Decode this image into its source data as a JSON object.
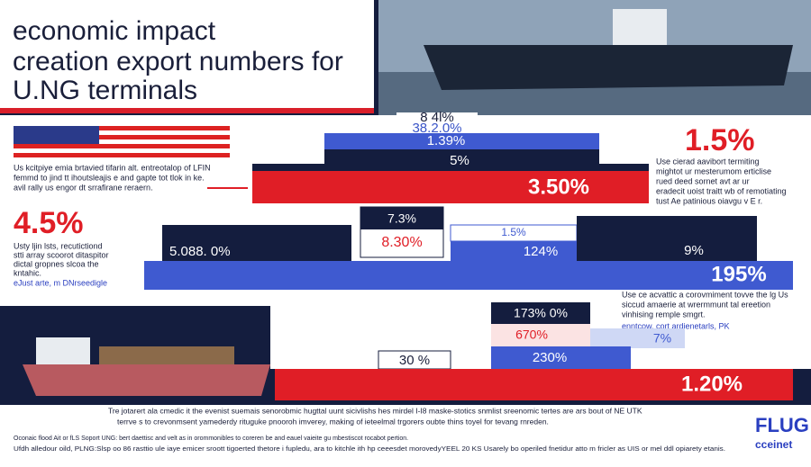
{
  "header": {
    "title_lines": [
      "economic impact",
      "creation export numbers for",
      "U.NG terminals"
    ]
  },
  "top_labels": [
    "8 4l%",
    "38.2.0%",
    "1.39%"
  ],
  "top_bars": [
    "5%",
    "3.50%"
  ],
  "left_note": [
    "Us kcitpiye emia brtavied tifarin alt. entreotalop of LFIN",
    "femmd to jind tt ihoutsleajis e and gapte tot tlok in ke.",
    "avil rally us engor dt srrafirane reraern."
  ],
  "right_stat": {
    "value": "1.5%",
    "lines": [
      "Use cierad aavibort termiting",
      "mightot ur mesterumom erticlise",
      "rued deed sornet avt ar ur",
      "eradecit uoist traitt wb of remotiating",
      "tust Ae patinious oiavgu v E r."
    ]
  },
  "left_stat": {
    "value": "4.5%",
    "lines": [
      "Usty ljin lsts, recutictiond",
      "stti array scoorot ditaspitor",
      "dictal gropnes slcoa the",
      "kntahic.",
      "eJust arte, m DNrseedigle"
    ]
  },
  "middle_row": {
    "left": "5.088. 0%",
    "box_top": "7.3%",
    "box_bottom": "8.30%",
    "small": "1.5%",
    "blue": "124%",
    "right": "9%",
    "wide": "195%"
  },
  "lower_note": [
    "Use ce acvattic a corovmiment tovve the lg Us",
    "siccud amaerie at wrermmunt tal ereetion",
    "vinhising remple smgrt.",
    "enntcow, cort ardienetarls, PK"
  ],
  "lower_bars": {
    "a": "173% 0%",
    "b": "670%",
    "c": "7%",
    "d": "30 %",
    "e": "230%",
    "f": "1.20%"
  },
  "footer": {
    "line1": "Tre jotarert ala cmedic it the evenist suemais senorobmic hugttal uunt sicivlishs hes mirdel I-I8 maske-stotics snmlist sreenomic tertes are ars bout of NE UTK",
    "line2": "terrve s to crevonmsent yamederdy rituguke pnooroh imverey, making of ieteelmal trgorers oubte thins toyel for tevang rnreden.",
    "line3": "Oconaic flood Ait or fLS Soport UNG: bert daettisc and velt as in orommonibles to coreren be and eauel vaieite gu mbestiscot rocabot pertion.",
    "line4": "Ufdh alledour oild, PLNG:Slsp oo 86 rasttio ule iaye emicer sroott tigoerted thetore i fupledu, ara to kitchle ith hp ceeesdet morovedyYEEL 20 KS Usarely bo operiled fnetidur atto m fricler as UIS or mel ddl opiarety etanis.",
    "logo_top": "FLUG",
    "logo_bottom": "cceinet"
  }
}
